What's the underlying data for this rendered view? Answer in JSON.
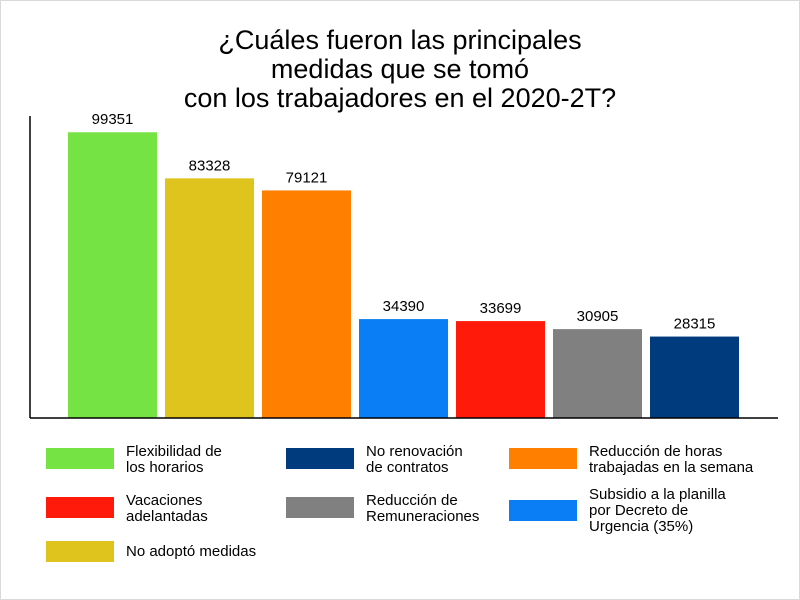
{
  "chart_data": {
    "type": "bar",
    "title_lines": [
      "¿Cuáles fueron las principales",
      "medidas que se tomó",
      "con los trabajadores en el 2020-2T?"
    ],
    "xlabel": "",
    "ylabel": "",
    "ylim": [
      0,
      105000
    ],
    "grid": false,
    "legend_position": "bottom",
    "categories": [
      "Flexibilidad de los horarios",
      "No adoptó medidas",
      "Reducción de horas trabajadas en la semana",
      "Subsidio a la planilla por Decreto de Urgencia (35%)",
      "Vacaciones adelantadas",
      "Reducción de Remuneraciones",
      "No renovación de contratos"
    ],
    "values": [
      99351,
      83328,
      79121,
      34390,
      33699,
      30905,
      28315
    ],
    "value_labels": [
      "99351",
      "83328",
      "79121",
      "34390",
      "33699",
      "30905",
      "28315"
    ],
    "colors": [
      "#76e344",
      "#e0c41e",
      "#ff7f00",
      "#0a7ff5",
      "#ff1a0a",
      "#808080",
      "#003c7d"
    ],
    "legend": [
      {
        "lines": [
          "Flexibilidad de",
          "los horarios"
        ],
        "color": "#76e344"
      },
      {
        "lines": [
          "No renovación",
          "de contratos"
        ],
        "color": "#003c7d"
      },
      {
        "lines": [
          "Reducción de horas",
          "trabajadas en la semana"
        ],
        "color": "#ff7f00"
      },
      {
        "lines": [
          "Vacaciones",
          "adelantadas"
        ],
        "color": "#ff1a0a"
      },
      {
        "lines": [
          "Reducción de",
          "Remuneraciones"
        ],
        "color": "#808080"
      },
      {
        "lines": [
          "Subsidio a la planilla",
          "por Decreto de",
          "Urgencia (35%)"
        ],
        "color": "#0a7ff5"
      },
      {
        "lines": [
          "No adoptó medidas"
        ],
        "color": "#e0c41e"
      }
    ]
  }
}
